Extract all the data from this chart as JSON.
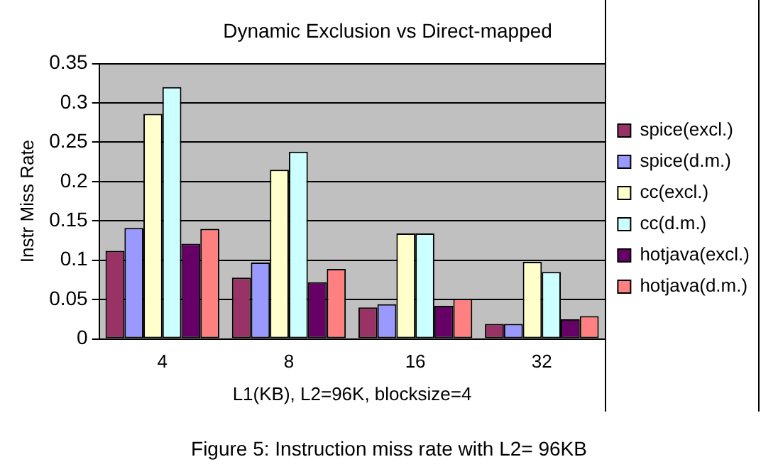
{
  "chart_data": {
    "type": "bar",
    "title": "Dynamic Exclusion vs Direct-mapped",
    "xlabel": "L1(KB), L2=96K, blocksize=4",
    "ylabel": "Instr Miss Rate",
    "categories": [
      "4",
      "8",
      "16",
      "32"
    ],
    "series": [
      {
        "name": "spice(excl.)",
        "color": "#993366",
        "values": [
          0.112,
          0.078,
          0.04,
          0.019
        ]
      },
      {
        "name": "spice(d.m.)",
        "color": "#9999ff",
        "values": [
          0.141,
          0.097,
          0.044,
          0.019
        ]
      },
      {
        "name": "cc(excl.)",
        "color": "#ffffcc",
        "values": [
          0.286,
          0.215,
          0.134,
          0.098
        ]
      },
      {
        "name": "cc(d.m.)",
        "color": "#ccffff",
        "values": [
          0.32,
          0.238,
          0.134,
          0.085
        ]
      },
      {
        "name": "hotjava(excl.)",
        "color": "#660066",
        "values": [
          0.121,
          0.072,
          0.042,
          0.025
        ]
      },
      {
        "name": "hotjava(d.m.)",
        "color": "#ff8080",
        "values": [
          0.14,
          0.089,
          0.051,
          0.029
        ]
      }
    ],
    "ylim": [
      0,
      0.35
    ],
    "yticks": [
      0,
      0.05,
      0.1,
      0.15,
      0.2,
      0.25,
      0.3,
      0.35
    ],
    "grid": "y",
    "legend": "right",
    "annotations": [
      "Figure 5: Instruction miss rate with L2= 96KB"
    ]
  }
}
